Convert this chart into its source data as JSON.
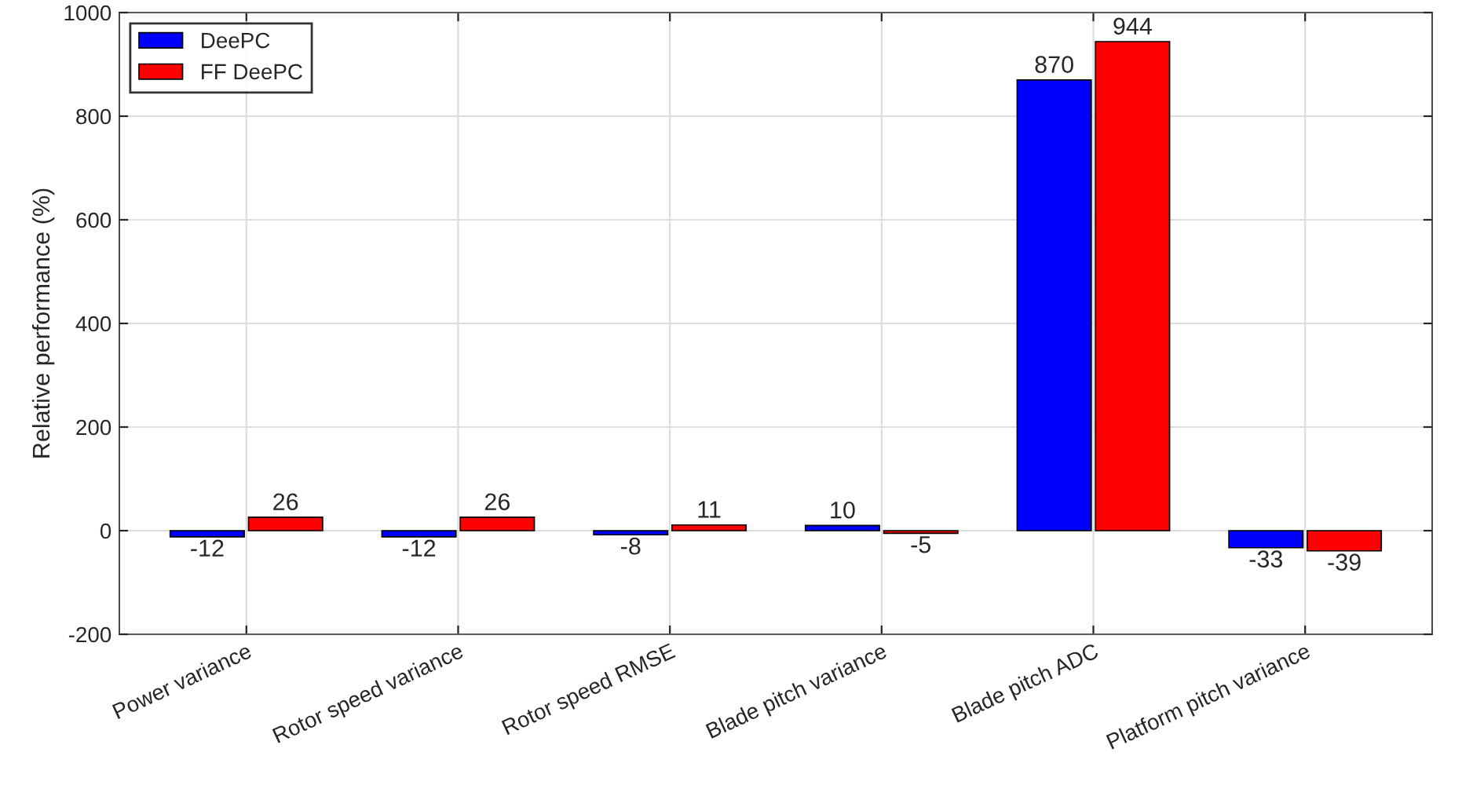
{
  "chart_data": {
    "type": "bar",
    "ylabel": "Relative performance (%)",
    "categories": [
      "Power variance",
      "Rotor speed variance",
      "Rotor speed RMSE",
      "Blade pitch variance",
      "Blade pitch ADC",
      "Platform pitch variance"
    ],
    "series": [
      {
        "name": "DeePC",
        "color": "#0000ff",
        "values": [
          -12,
          -12,
          -8,
          10,
          870,
          -33
        ]
      },
      {
        "name": "FF DeePC",
        "color": "#ff0000",
        "values": [
          26,
          26,
          11,
          -5,
          944,
          -39
        ]
      }
    ],
    "ylim": [
      -200,
      1000
    ],
    "yticks": [
      -200,
      0,
      200,
      400,
      600,
      800,
      1000
    ],
    "grid": true,
    "legend": "top left",
    "data_labels": true
  }
}
